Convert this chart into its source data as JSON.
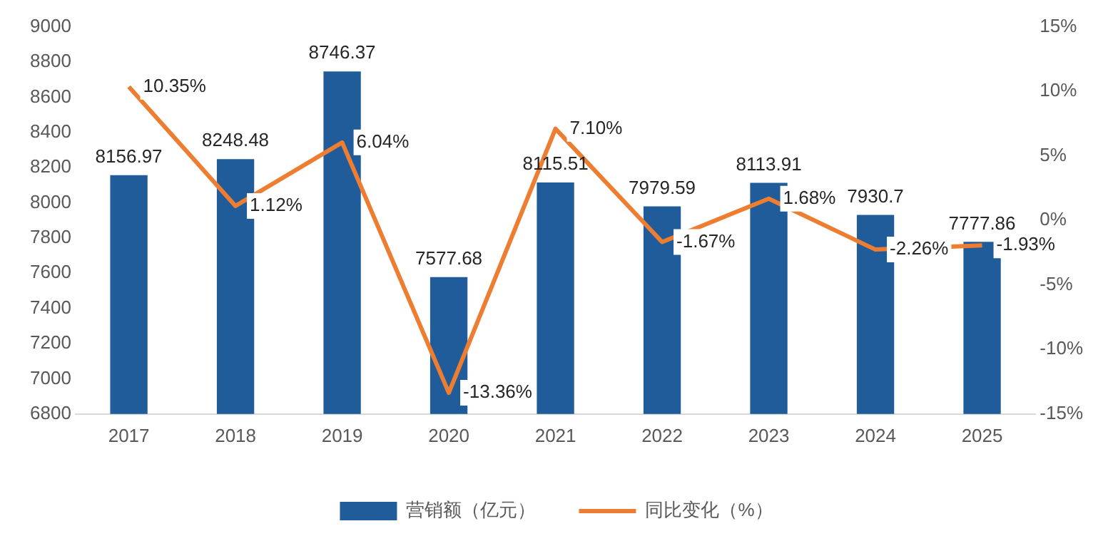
{
  "chart_data": {
    "type": "bar",
    "categories": [
      "2017",
      "2018",
      "2019",
      "2020",
      "2021",
      "2022",
      "2023",
      "2024",
      "2025"
    ],
    "series": [
      {
        "name": "营销额（亿元）",
        "color": "#1f5c99",
        "values": [
          8156.97,
          8248.48,
          8746.37,
          7577.68,
          8115.51,
          7979.59,
          8113.91,
          7930.7,
          7777.86
        ],
        "value_labels": [
          "8156.97",
          "8248.48",
          "8746.37",
          "7577.68",
          "8115.51",
          "7979.59",
          "8113.91",
          "7930.7",
          "7777.86"
        ]
      },
      {
        "name": "同比变化（%）",
        "type": "line",
        "axis": "y2",
        "color": "#ed7d31",
        "values": [
          10.35,
          1.12,
          6.04,
          -13.36,
          7.1,
          -1.67,
          1.68,
          -2.26,
          -1.93
        ],
        "value_labels": [
          "10.35%",
          "1.12%",
          "6.04%",
          "-13.36%",
          "7.10%",
          "-1.67%",
          "1.68%",
          "-2.26%",
          "-1.93%"
        ]
      }
    ],
    "ylim": [
      6800,
      9000
    ],
    "yticks": [
      6800,
      7000,
      7200,
      7400,
      7600,
      7800,
      8000,
      8200,
      8400,
      8600,
      8800,
      9000
    ],
    "y2lim": [
      -15,
      15
    ],
    "y2ticks": [
      {
        "value": -15,
        "label": "-15%"
      },
      {
        "value": -10,
        "label": "-10%"
      },
      {
        "value": -5,
        "label": "-5%"
      },
      {
        "value": 0,
        "label": "0%"
      },
      {
        "value": 5,
        "label": "5%"
      },
      {
        "value": 10,
        "label": "10%"
      },
      {
        "value": 15,
        "label": "15%"
      }
    ],
    "grid": false,
    "legend": "bottom",
    "marker": "none",
    "line_style": "solid"
  }
}
